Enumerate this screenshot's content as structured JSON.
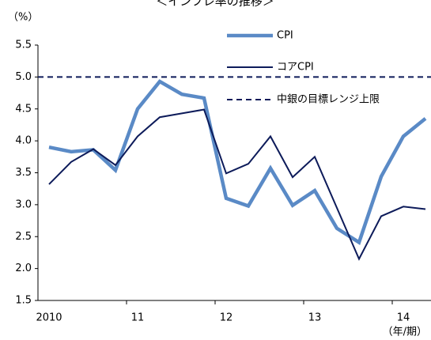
{
  "chart_data": {
    "type": "line",
    "title": "＜インフレ率の推移＞",
    "y_label": "（%）",
    "x_label": "（年/期）",
    "categories": [
      "2010",
      null,
      null,
      null,
      "11",
      null,
      null,
      null,
      "12",
      null,
      null,
      null,
      "13",
      null,
      null,
      null,
      "14",
      null
    ],
    "series": [
      {
        "name": "CPI",
        "color": "#5a8ac6",
        "width": 4.5,
        "values": [
          3.9,
          3.83,
          3.86,
          3.54,
          4.5,
          4.93,
          4.73,
          4.67,
          3.1,
          2.98,
          3.57,
          2.99,
          3.22,
          2.63,
          2.41,
          3.44,
          4.07,
          4.35
        ]
      },
      {
        "name": "コアCPI",
        "color": "#0d1b5a",
        "width": 2,
        "values": [
          3.32,
          3.67,
          3.87,
          3.62,
          4.07,
          4.37,
          4.43,
          4.49,
          3.49,
          3.64,
          4.07,
          3.43,
          3.75,
          2.95,
          2.15,
          2.82,
          2.97,
          2.93
        ]
      }
    ],
    "reference_lines": [
      {
        "name": "中銀の目標レンジ上限",
        "value": 5,
        "color": "#0d1b5a"
      }
    ],
    "ylim": [
      1.5,
      5.5
    ],
    "yticks": [
      1.5,
      {
        "value": 2,
        "label": "2.0"
      },
      2.5,
      {
        "value": 3,
        "label": "3.0"
      },
      3.5,
      {
        "value": 4,
        "label": "4.0"
      },
      4.5,
      {
        "value": 5,
        "label": "5.0"
      },
      5.5
    ]
  }
}
